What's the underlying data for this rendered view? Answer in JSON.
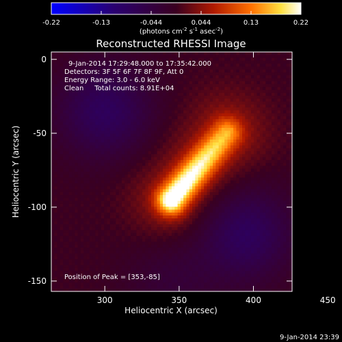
{
  "chart_data": {
    "type": "heatmap",
    "title": "Reconstructed RHESSI Image",
    "xlabel": "Heliocentric X (arcsec)",
    "ylabel": "Heliocentric Y (arcsec)",
    "xlim": [
      264,
      426
    ],
    "ylim": [
      -157,
      5
    ],
    "x_ticks": [
      300,
      350,
      400,
      450
    ],
    "y_ticks": [
      0,
      -50,
      -100,
      -150
    ],
    "colorbar": {
      "ticks": [
        "-0.22",
        "-0.13",
        "-0.044",
        "0.044",
        "0.13",
        "0.22"
      ],
      "range": [
        -0.22,
        0.22
      ],
      "unit_label": "(photons cm",
      "unit_sup1": "-2",
      "unit_mid": " s",
      "unit_sup2": "-1",
      "unit_mid2": " asec",
      "unit_sup3": "-2",
      "unit_close": ")"
    },
    "annotations": [
      "9-Jan-2014 17:29:48.000 to 17:35:42.000",
      "Detectors: 3F 5F 6F 7F 8F 9F, Att 0",
      "Energy Range: 3.0 - 6.0 keV",
      "Clean     Total counts: 8.91E+04"
    ],
    "peak_label": "Position of Peak = [353,-85]",
    "peak": [
      353,
      -85
    ],
    "features": {
      "source": {
        "x1": 345,
        "y1": -95,
        "x2": 382,
        "y2": -50,
        "value": 0.22
      },
      "neg_lobes": [
        {
          "x": 300,
          "y": -35,
          "value": -0.08
        },
        {
          "x": 395,
          "y": -118,
          "value": -0.08
        },
        {
          "x": 345,
          "y": -148,
          "value": -0.03
        }
      ]
    }
  },
  "footer": {
    "timestamp": "9-Jan-2014 23:39"
  }
}
